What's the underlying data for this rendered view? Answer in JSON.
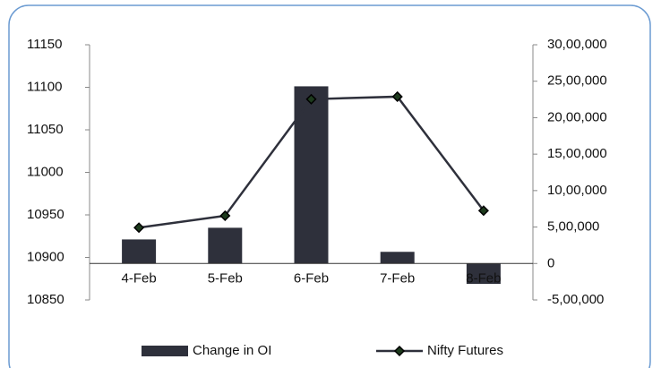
{
  "chart_data": {
    "type": "bar-line",
    "categories": [
      "4-Feb",
      "5-Feb",
      "6-Feb",
      "7-Feb",
      "8-Feb"
    ],
    "series": [
      {
        "name": "Change in OI",
        "type": "bar",
        "axis": "y2",
        "color": "#2e303b",
        "values": [
          330000,
          490000,
          2430000,
          160000,
          -280000
        ]
      },
      {
        "name": "Nifty Futures",
        "type": "line",
        "axis": "y",
        "color": "#2e303b",
        "marker_color": "#1d3a1d",
        "values": [
          10935,
          10949,
          11086,
          11089,
          10955
        ]
      }
    ],
    "ylim": [
      10850,
      11150
    ],
    "yticks": [
      10850,
      10900,
      10950,
      11000,
      11050,
      11100,
      11150
    ],
    "y2lim": [
      -500000,
      3000000
    ],
    "y2ticks": [
      {
        "value": -500000,
        "label": "-5,00,000"
      },
      0,
      {
        "value": 500000,
        "label": "5,00,000"
      },
      {
        "value": 1000000,
        "label": "10,00,000"
      },
      {
        "value": 1500000,
        "label": "15,00,000"
      },
      {
        "value": 2000000,
        "label": "20,00,000"
      },
      {
        "value": 2500000,
        "label": "25,00,000"
      },
      {
        "value": 3000000,
        "label": "30,00,000"
      }
    ],
    "legend": "bottom"
  }
}
